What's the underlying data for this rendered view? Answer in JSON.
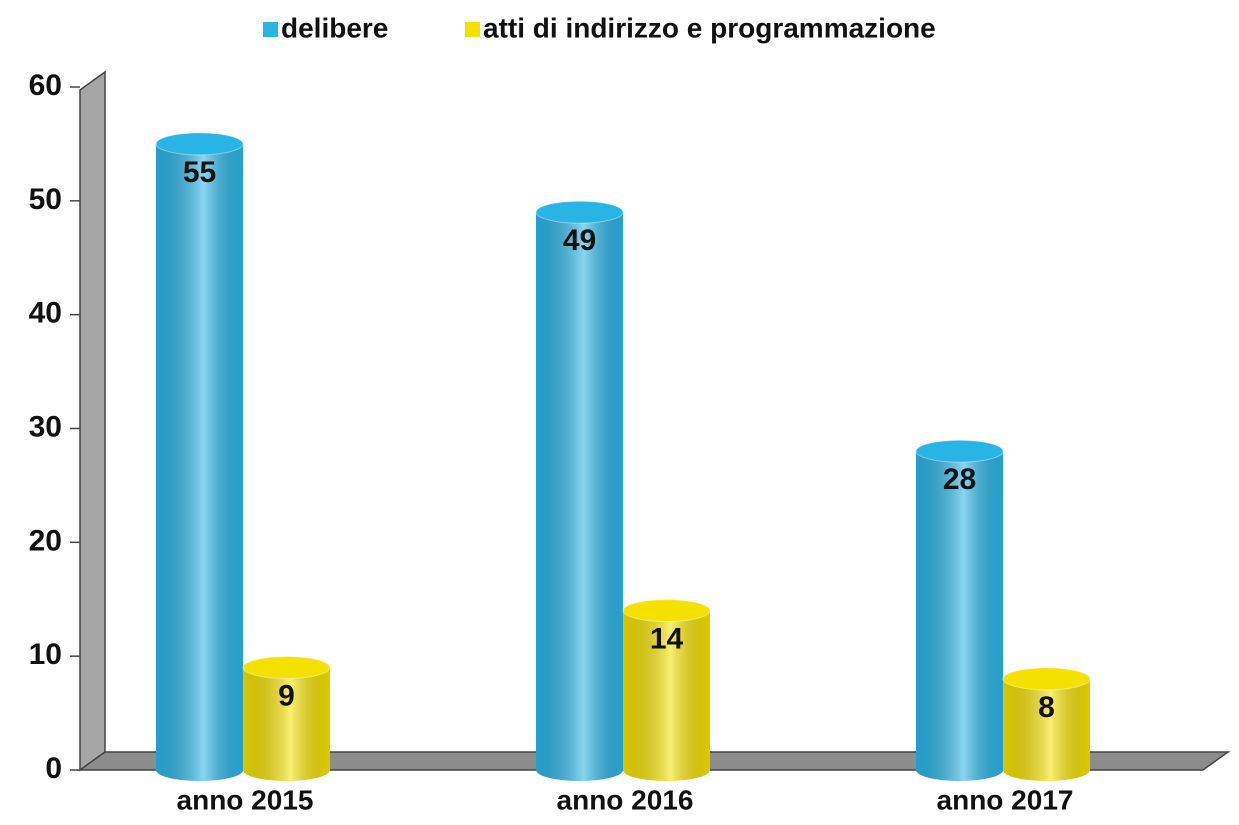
{
  "chart_data": {
    "type": "bar",
    "categories": [
      "anno 2015",
      "anno 2016",
      "anno 2017"
    ],
    "series": [
      {
        "name": "delibere",
        "color": "#29b4e6",
        "values": [
          55,
          49,
          28
        ]
      },
      {
        "name": "atti di indirizzo e programmazione",
        "color": "#f5e100",
        "values": [
          9,
          14,
          8
        ]
      }
    ],
    "ylim": [
      0,
      60
    ],
    "yticks": [
      0,
      10,
      20,
      30,
      40,
      50,
      60
    ],
    "grid": false,
    "legend": "top"
  }
}
